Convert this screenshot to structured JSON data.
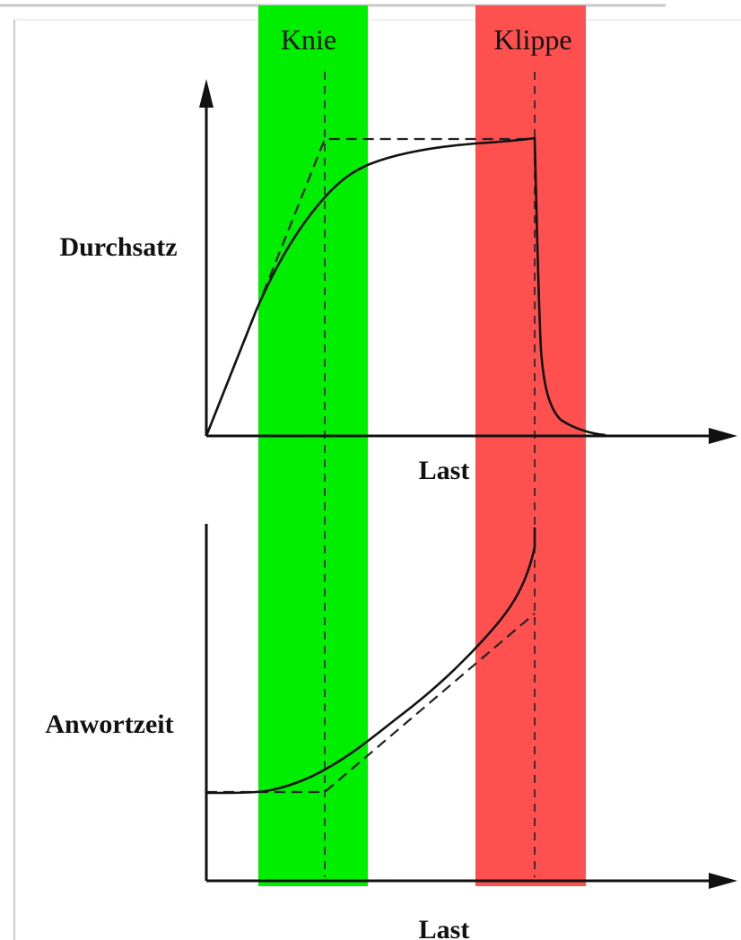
{
  "labels": {
    "knee": "Knie",
    "cliff": "Klippe",
    "throughput_axis": "Durchsatz",
    "response_axis": "Anwortzeit",
    "load_axis_top": "Last",
    "load_axis_bottom": "Last"
  },
  "colors": {
    "knee_band": "#00ee00",
    "cliff_band": "#ff5050",
    "curve": "#111111",
    "frame": "#bbbbbb"
  }
}
